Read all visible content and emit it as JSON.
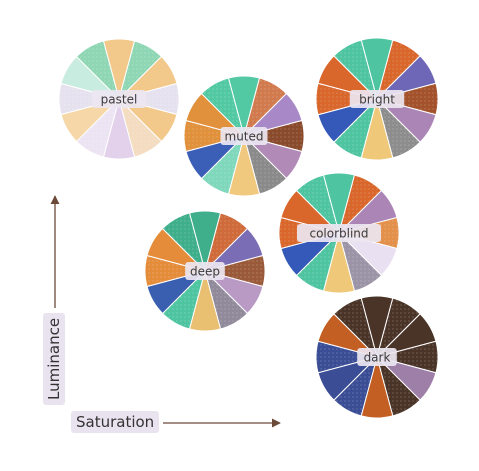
{
  "axes": {
    "x_label": "Saturation",
    "y_label": "Luminance"
  },
  "palettes": [
    {
      "name": "pastel",
      "colors": [
        "#f3c98b",
        "#8fd6b4",
        "#f3c98b",
        "#e6e1ee",
        "#f3c98b",
        "#f3dcc0",
        "#e3d0ea",
        "#ece4f3",
        "#f5d7a8",
        "#e6e1ee",
        "#c9ece0",
        "#8fd6b4"
      ]
    },
    {
      "name": "muted",
      "colors": [
        "#52c9a3",
        "#d07a4e",
        "#a888c6",
        "#8a4a2c",
        "#b28ab8",
        "#8a8a8a",
        "#f1c97e",
        "#7fd7bc",
        "#3b5fb6",
        "#e1903b",
        "#e1903b",
        "#52c9a3"
      ]
    },
    {
      "name": "bright",
      "colors": [
        "#4ec5a0",
        "#d9662b",
        "#6e66b7",
        "#a3522b",
        "#ab85b6",
        "#8d8d8d",
        "#efc979",
        "#4ec5a0",
        "#3459b8",
        "#d9662b",
        "#d9662b",
        "#4ec5a0"
      ]
    },
    {
      "name": "colorblind",
      "colors": [
        "#4ec5a0",
        "#d9662b",
        "#ab85b6",
        "#e2904a",
        "#e9e0f1",
        "#9a94a6",
        "#efc979",
        "#4ec5a0",
        "#3459b8",
        "#d9662b",
        "#d9662b",
        "#4ec5a0"
      ]
    },
    {
      "name": "deep",
      "colors": [
        "#3fae8b",
        "#cf6a3a",
        "#7b6db5",
        "#9a5a3a",
        "#b99ac5",
        "#908a9a",
        "#e9bf72",
        "#4ec5a0",
        "#3a5fb1",
        "#e48c3a",
        "#e48c3a",
        "#3fae8b"
      ]
    },
    {
      "name": "dark",
      "colors": [
        "#4a3427",
        "#4a3427",
        "#4a3427",
        "#4a3427",
        "#9e7fa8",
        "#4a3427",
        "#c45f24",
        "#3a4d95",
        "#3a4d95",
        "#3a4d95",
        "#c45f24",
        "#4a3427"
      ]
    }
  ]
}
